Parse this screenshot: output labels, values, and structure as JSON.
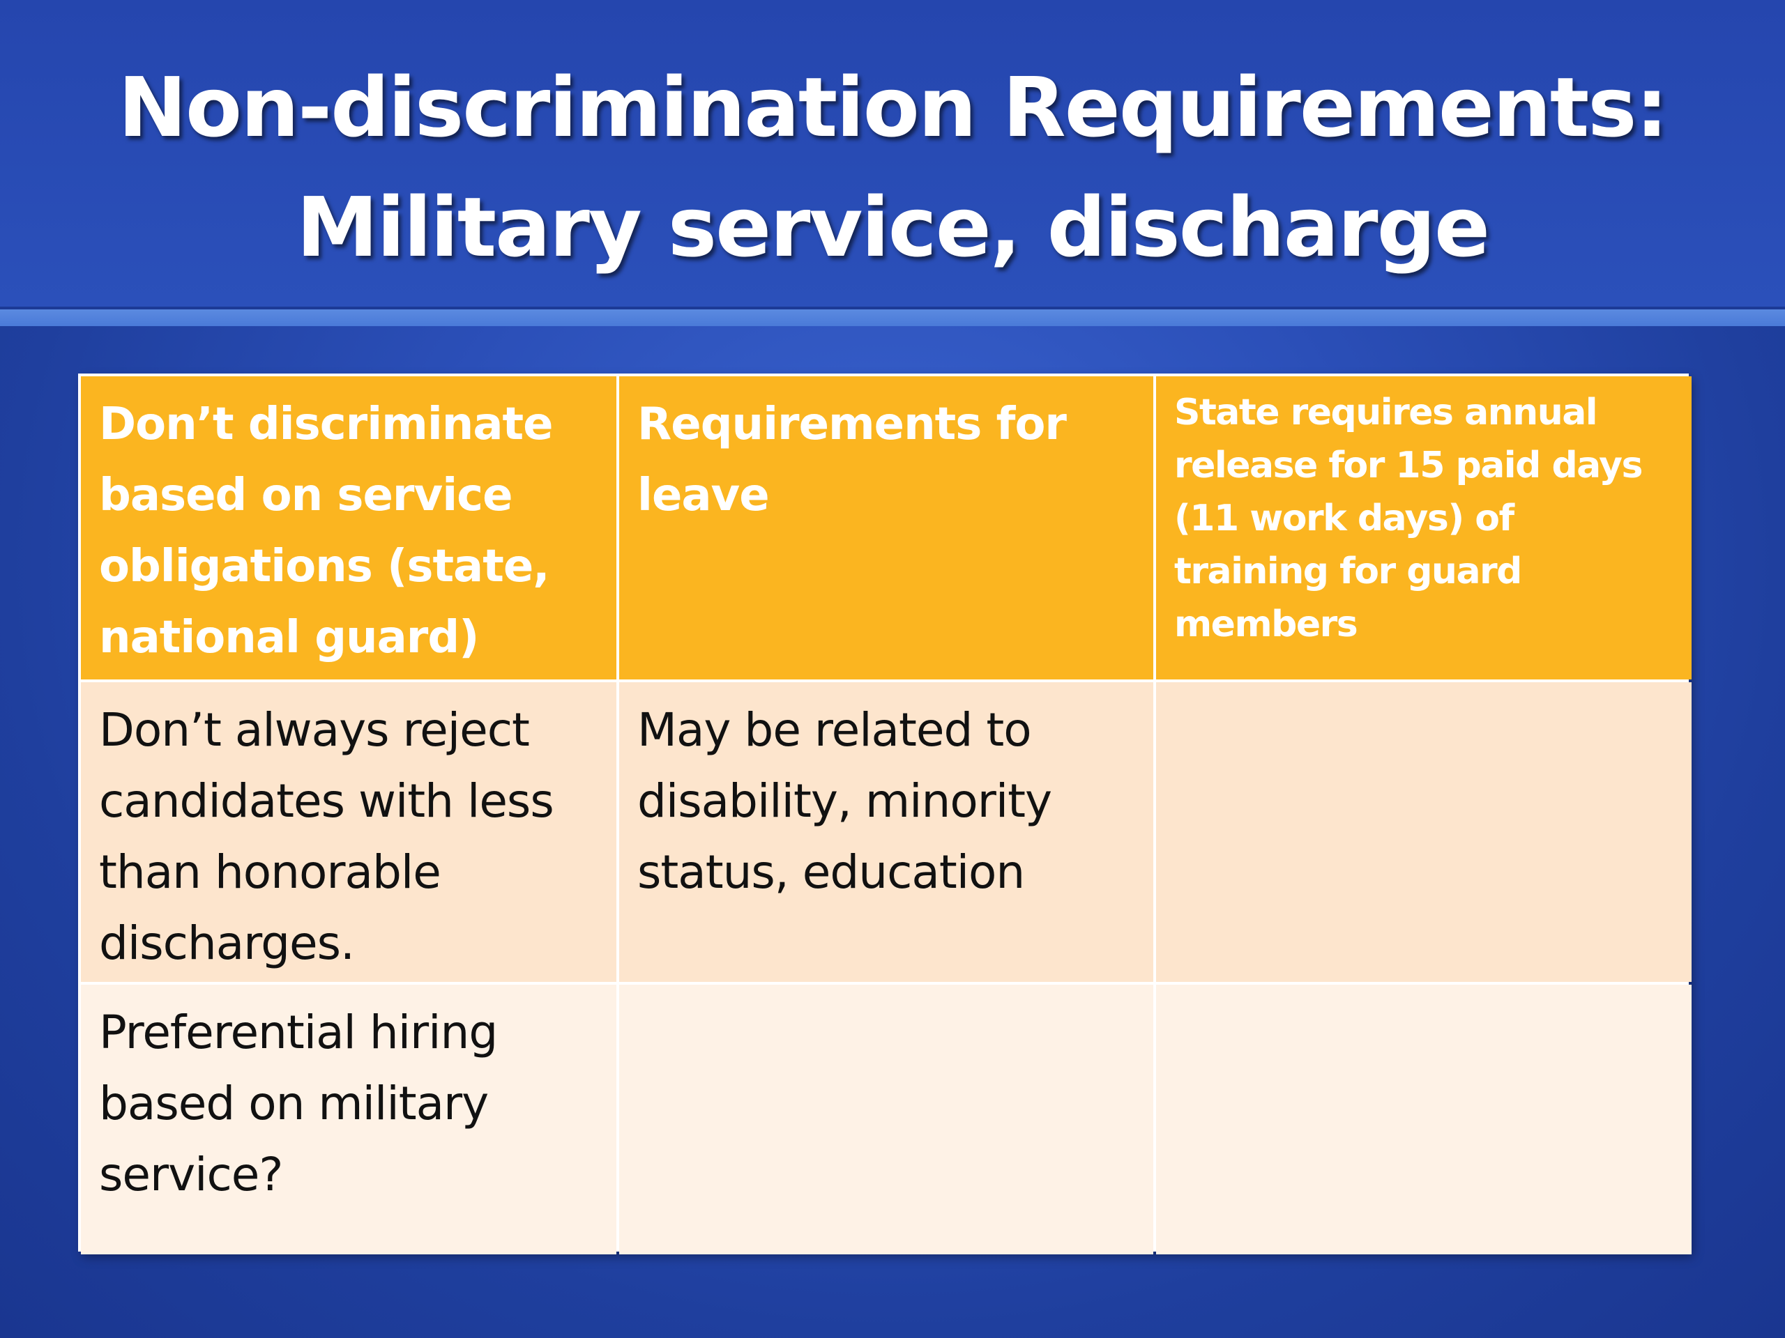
{
  "slide": {
    "title_line1": "Non-discrimination Requirements:",
    "title_line2": "Military service, discharge"
  },
  "table": {
    "header": [
      "Don’t discriminate based on service obligations (state, national guard)",
      "Requirements for leave",
      "State requires annual release for 15 paid  days (11 work days) of training for guard members"
    ],
    "rows": [
      [
        "Don’t always reject candidates with less than honorable discharges.",
        "May be related to disability, minority status, education",
        ""
      ],
      [
        "Preferential hiring based on military service?",
        "",
        ""
      ]
    ]
  },
  "colors": {
    "background": "#2b4fb8",
    "header_fill": "#fbb520",
    "row1_fill": "#fde5cd",
    "row2_fill": "#fef2e6"
  }
}
